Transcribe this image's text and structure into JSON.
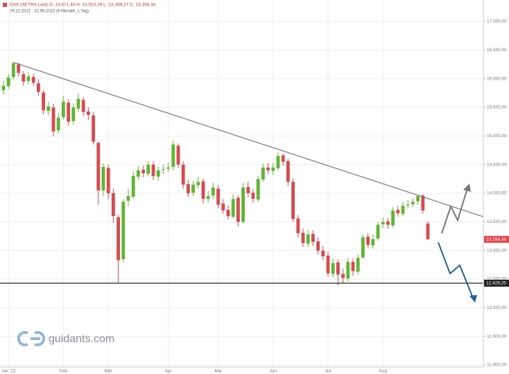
{
  "chart_data": {
    "type": "candlestick",
    "title": "DAX (XETRA Last)  O: 13.471,44  H: 13.510,29  L: 13.189,27  C: 13.194,34",
    "subtitle": "29.12.2021 - 22.08.2022 (8 Monate, 1 Tag)",
    "watermark": "guidants.com",
    "up_color": "#5cb82e",
    "down_color": "#e0474c",
    "categories": [
      null,
      "Jan '22",
      null,
      null,
      null,
      null,
      null,
      null,
      null,
      null,
      null,
      null,
      "Feb",
      null,
      null,
      null,
      null,
      null,
      null,
      null,
      null,
      "Mär",
      null,
      null,
      null,
      null,
      null,
      null,
      null,
      null,
      null,
      null,
      null,
      "Apr",
      null,
      null,
      null,
      null,
      null,
      null,
      null,
      null,
      null,
      "Mai",
      null,
      null,
      null,
      null,
      null,
      null,
      null,
      null,
      null,
      null,
      "Jun",
      null,
      null,
      null,
      null,
      null,
      null,
      null,
      null,
      null,
      null,
      "Jul",
      null,
      null,
      null,
      null,
      null,
      null,
      null,
      null,
      null,
      null,
      "Aug",
      null,
      null,
      null,
      null,
      null,
      null,
      null,
      null,
      null
    ],
    "open": [
      15800,
      15870,
      16030,
      16250,
      16080,
      15960,
      16030,
      15920,
      15760,
      15440,
      15500,
      15100,
      15330,
      15580,
      15260,
      15480,
      15630,
      15430,
      15360,
      14880,
      14050,
      14440,
      14000,
      13580,
      12850,
      13870,
      13940,
      14290,
      14410,
      14340,
      14500,
      14290,
      14410,
      14430,
      14460,
      14830,
      14500,
      14160,
      14010,
      14140,
      14210,
      13900,
      13960,
      14080,
      13820,
      13710,
      13590,
      13920,
      13500,
      14110,
      14010,
      13890,
      14240,
      14450,
      14390,
      14440,
      14660,
      14560,
      14200,
      13560,
      13310,
      13120,
      13290,
      13160,
      13000,
      12910,
      12590,
      12790,
      12590,
      12510,
      12800,
      12630,
      12880,
      13240,
      13090,
      13210,
      13460,
      13510,
      13440,
      13710,
      13640,
      13790,
      13810,
      13860,
      13960,
      13471.44
    ],
    "high": [
      15960,
      16080,
      16285,
      16280,
      16130,
      16110,
      16090,
      15990,
      15800,
      15600,
      15560,
      15400,
      15700,
      15640,
      15570,
      15740,
      15680,
      15500,
      15420,
      14900,
      14520,
      14500,
      14080,
      13620,
      13900,
      14080,
      14380,
      14480,
      14480,
      14560,
      14560,
      14470,
      14500,
      14530,
      14920,
      14870,
      14560,
      14230,
      14220,
      14290,
      14260,
      14040,
      14180,
      14140,
      13900,
      13790,
      13980,
      13960,
      14180,
      14200,
      14080,
      14300,
      14520,
      14530,
      14530,
      14710,
      14700,
      14600,
      14260,
      13620,
      13380,
      13360,
      13350,
      13230,
      13080,
      12980,
      12860,
      12840,
      12680,
      12870,
      12860,
      12930,
      13290,
      13300,
      13280,
      13500,
      13580,
      13570,
      13760,
      13780,
      13850,
      13880,
      13920,
      13970,
      13980,
      13510.29
    ],
    "low": [
      15720,
      15820,
      15990,
      16040,
      15880,
      15900,
      15870,
      15700,
      15380,
      15360,
      14990,
      15040,
      15290,
      15180,
      15200,
      15420,
      15350,
      15280,
      14850,
      13800,
      13950,
      13900,
      13480,
      12439,
      12800,
      13780,
      13900,
      14230,
      14280,
      14290,
      14230,
      14220,
      14340,
      14370,
      14400,
      14440,
      14080,
      13930,
      13950,
      14080,
      13820,
      13840,
      13900,
      13740,
      13640,
      13540,
      13560,
      13420,
      13470,
      13930,
      13830,
      13850,
      14200,
      14330,
      14320,
      14400,
      14480,
      14130,
      13500,
      13230,
      13060,
      13060,
      13080,
      12930,
      12830,
      12540,
      12530,
      12390,
      12440,
      12460,
      12560,
      12580,
      12850,
      13040,
      13030,
      13170,
      13400,
      13380,
      13400,
      13590,
      13600,
      13730,
      13750,
      13800,
      13640,
      13189.27
    ],
    "close": [
      15880,
      16020,
      16270,
      16100,
      15950,
      16040,
      15930,
      15770,
      15450,
      15520,
      15080,
      15320,
      15600,
      15250,
      15500,
      15650,
      15420,
      15370,
      14900,
      14050,
      14460,
      14000,
      13600,
      12830,
      13850,
      13950,
      14300,
      14400,
      14350,
      14500,
      14300,
      14400,
      14420,
      14450,
      14850,
      14500,
      14150,
      14000,
      14150,
      14200,
      13900,
      13950,
      14100,
      13800,
      13700,
      13600,
      13900,
      13500,
      14100,
      14000,
      13900,
      14250,
      14450,
      14400,
      14450,
      14650,
      14550,
      14200,
      13550,
      13300,
      13130,
      13280,
      13150,
      13000,
      12900,
      12600,
      12780,
      12580,
      12520,
      12800,
      12640,
      12870,
      13230,
      13100,
      13200,
      13450,
      13500,
      13450,
      13700,
      13650,
      13780,
      13800,
      13850,
      13950,
      13700,
      13194.34
    ],
    "ylim": [
      10964,
      17375
    ],
    "yticks": [
      {
        "value": 11000,
        "label": "11.000,00"
      },
      {
        "value": 11500,
        "label": "11.500,00"
      },
      {
        "value": 12000,
        "label": "12.000,00"
      },
      {
        "value": 12500,
        "label": "12.500,00"
      },
      {
        "value": 13000,
        "label": "13.000,00"
      },
      {
        "value": 13500,
        "label": "13.500,00"
      },
      {
        "value": 14000,
        "label": "14.000,00"
      },
      {
        "value": 14500,
        "label": "14.500,00"
      },
      {
        "value": 15000,
        "label": "15.000,00"
      },
      {
        "value": 15500,
        "label": "15.500,00"
      },
      {
        "value": 16000,
        "label": "16.000,00"
      },
      {
        "value": 16500,
        "label": "16.500,00"
      },
      {
        "value": 17000,
        "label": "17.000,00"
      }
    ],
    "grid": true,
    "last_price": {
      "value": 13194.34,
      "label": "13.194,34",
      "color": "#e0474c"
    },
    "support": {
      "value": 12429.25,
      "label": "12.429,25",
      "color": "#222222"
    },
    "trendline": {
      "start": 16285,
      "end": 13590,
      "color": "#777777"
    }
  }
}
